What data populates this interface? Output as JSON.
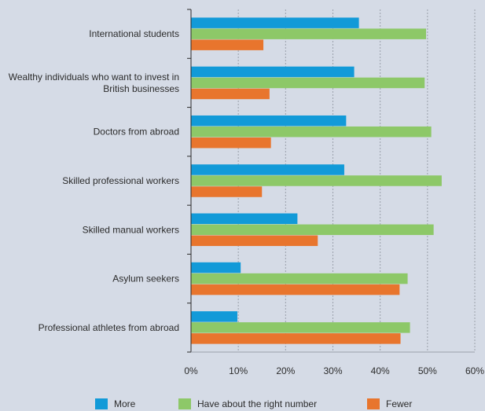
{
  "chart_data": {
    "type": "bar",
    "orientation": "horizontal",
    "categories": [
      [
        "International students"
      ],
      [
        "Wealthy individuals who want to invest in",
        "British businesses"
      ],
      [
        "Doctors from abroad"
      ],
      [
        "Skilled professional workers"
      ],
      [
        "Skilled manual workers"
      ],
      [
        "Asylum seekers"
      ],
      [
        "Professional athletes from abroad"
      ]
    ],
    "series": [
      {
        "name": "More",
        "color": "#129ad8",
        "values": [
          35.5,
          34.5,
          32.8,
          32.4,
          22.5,
          10.5,
          9.8
        ]
      },
      {
        "name": "Have about the right number",
        "color": "#8dc868",
        "values": [
          49.7,
          49.4,
          50.8,
          53.0,
          51.3,
          45.8,
          46.3
        ]
      },
      {
        "name": "Fewer",
        "color": "#e8752d",
        "values": [
          15.3,
          16.6,
          16.9,
          15.0,
          26.8,
          44.1,
          44.3
        ]
      }
    ],
    "xlim": [
      0,
      60
    ],
    "xticks": [
      "0%",
      "10%",
      "20%",
      "30%",
      "40%",
      "50%",
      "60%"
    ],
    "grid": "vertical dashed",
    "legend_position": "bottom"
  }
}
